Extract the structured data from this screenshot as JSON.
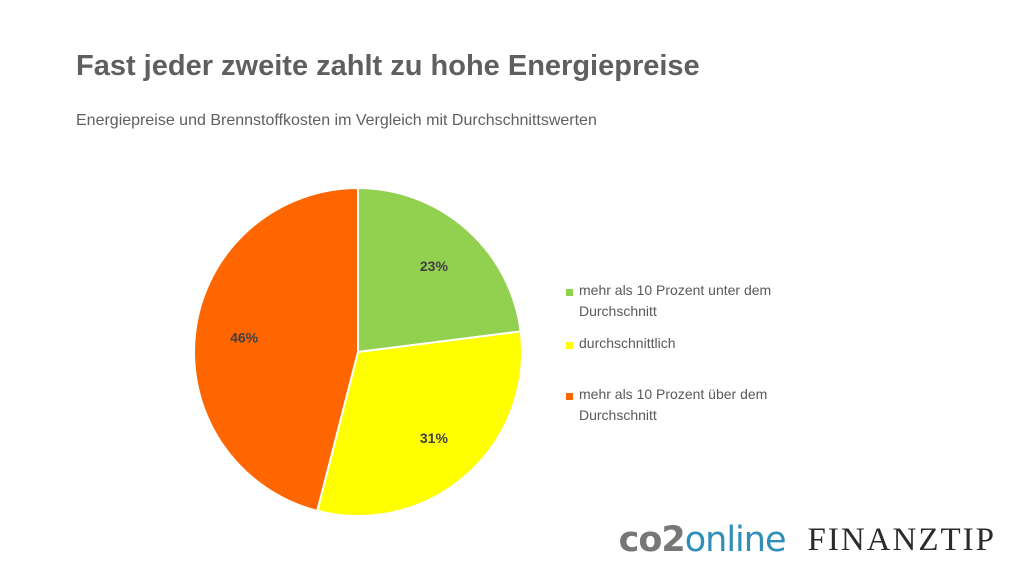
{
  "title": "Fast jeder zweite zahlt zu hohe Energiepreise",
  "subtitle": "Energiepreise und Brennstoffkosten im Vergleich mit Durchschnittswerten",
  "chart_data": {
    "type": "pie",
    "categories": [
      "mehr als 10 Prozent unter dem Durchschnitt",
      "durchschnittlich",
      "mehr als 10 Prozent über dem Durchschnitt"
    ],
    "values": [
      23,
      31,
      46
    ],
    "labels": [
      "23%",
      "31%",
      "46%"
    ],
    "colors": [
      "#92d050",
      "#ffff00",
      "#ff6600"
    ],
    "legend_position": "right"
  },
  "logos": {
    "co2_prefix": "co2",
    "co2_suffix": "online",
    "finanztip": "FINANZTIP"
  }
}
